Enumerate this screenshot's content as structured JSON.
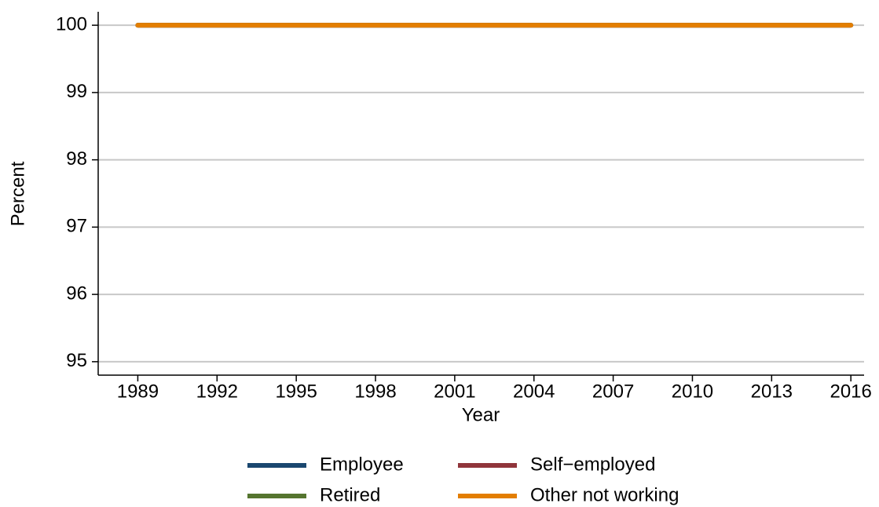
{
  "chart_data": {
    "type": "line",
    "x": [
      1989,
      1992,
      1995,
      1998,
      2001,
      2004,
      2007,
      2010,
      2013,
      2016
    ],
    "xlabel": "Year",
    "ylabel": "Percent",
    "series": [
      {
        "name": "Employee",
        "color": "#1a476f",
        "values": [
          100,
          100,
          100,
          100,
          100,
          100,
          100,
          100,
          100,
          100
        ]
      },
      {
        "name": "Self−employed",
        "color": "#90353b",
        "values": [
          100,
          100,
          100,
          100,
          100,
          100,
          100,
          100,
          100,
          100
        ]
      },
      {
        "name": "Retired",
        "color": "#55752f",
        "values": [
          100,
          100,
          100,
          100,
          100,
          100,
          100,
          100,
          100,
          100
        ]
      },
      {
        "name": "Other not working",
        "color": "#e37e00",
        "values": [
          100,
          100,
          100,
          100,
          100,
          100,
          100,
          100,
          100,
          100
        ]
      }
    ],
    "xlim": [
      1987.5,
      2016.5
    ],
    "xticks": [
      1989,
      1992,
      1995,
      1998,
      2001,
      2004,
      2007,
      2010,
      2013,
      2016
    ],
    "ylim": [
      94.8,
      100.2
    ],
    "yticks": [
      95,
      96,
      97,
      98,
      99,
      100
    ],
    "grid": true,
    "legend": "bottom"
  }
}
